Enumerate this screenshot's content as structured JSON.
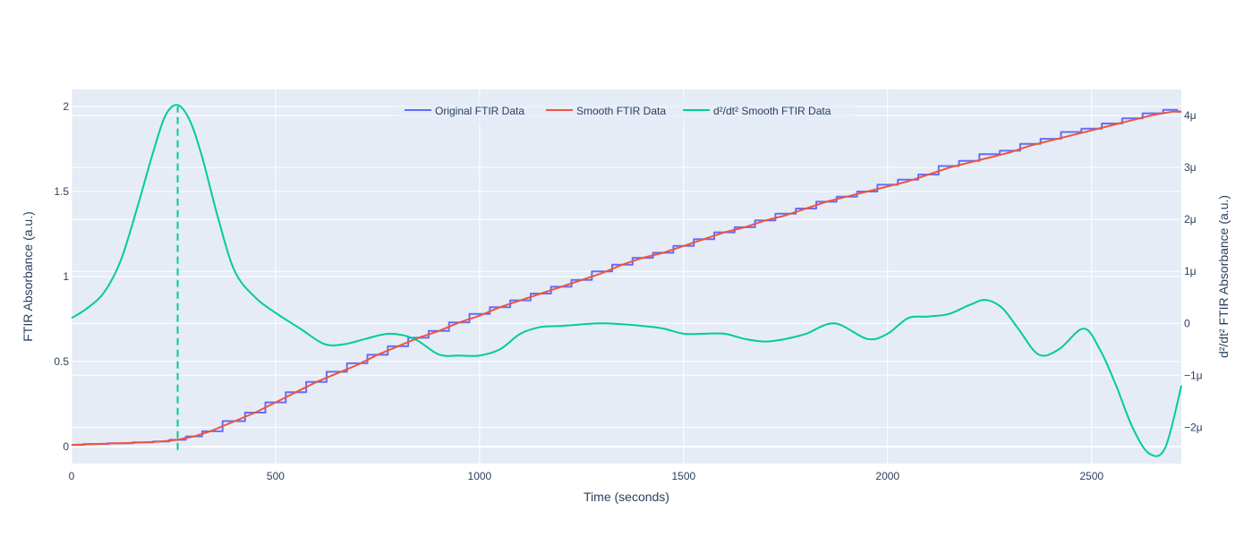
{
  "chart_data": {
    "type": "line",
    "xlabel": "Time (seconds)",
    "ylabel": "FTIR Absorbance (a.u.)",
    "y2label": "d²/dt² FTIR Absorbance (a.u.)",
    "xlim": [
      0,
      2720
    ],
    "ylim": [
      -0.1,
      2.1
    ],
    "y2lim": [
      -2.7e-06,
      4.5e-06
    ],
    "x_ticks": [
      {
        "value": 0,
        "label": "0"
      },
      {
        "value": 500,
        "label": "500"
      },
      {
        "value": 1000,
        "label": "1000"
      },
      {
        "value": 1500,
        "label": "1500"
      },
      {
        "value": 2000,
        "label": "2000"
      },
      {
        "value": 2500,
        "label": "2500"
      }
    ],
    "y_ticks": [
      {
        "value": 0,
        "label": "0"
      },
      {
        "value": 0.5,
        "label": "0.5"
      },
      {
        "value": 1,
        "label": "1"
      },
      {
        "value": 1.5,
        "label": "1.5"
      },
      {
        "value": 2,
        "label": "2"
      }
    ],
    "y2_ticks": [
      {
        "value": -2e-06,
        "label": "−2μ"
      },
      {
        "value": -1e-06,
        "label": "−1μ"
      },
      {
        "value": 0,
        "label": "0"
      },
      {
        "value": 1e-06,
        "label": "1μ"
      },
      {
        "value": 2e-06,
        "label": "2μ"
      },
      {
        "value": 3e-06,
        "label": "3μ"
      },
      {
        "value": 4e-06,
        "label": "4μ"
      }
    ],
    "grid": true,
    "legend_position": "top-center",
    "vline": {
      "x": 260,
      "y_from": -0.02,
      "y_to": 2.0,
      "color": "#00cc96",
      "style": "dashed"
    },
    "series": [
      {
        "name": "Original FTIR Data",
        "color": "#636efa",
        "axis": "y",
        "shape": "step",
        "x": [
          0,
          60,
          120,
          180,
          220,
          260,
          300,
          340,
          400,
          450,
          500,
          550,
          600,
          650,
          700,
          750,
          800,
          850,
          900,
          950,
          1000,
          1050,
          1100,
          1150,
          1200,
          1250,
          1300,
          1350,
          1400,
          1450,
          1500,
          1550,
          1600,
          1650,
          1700,
          1750,
          1800,
          1850,
          1900,
          1950,
          2000,
          2050,
          2100,
          2150,
          2200,
          2250,
          2300,
          2350,
          2400,
          2450,
          2500,
          2550,
          2600,
          2650,
          2700,
          2720
        ],
        "y": [
          0.01,
          0.015,
          0.02,
          0.025,
          0.03,
          0.04,
          0.06,
          0.09,
          0.15,
          0.2,
          0.26,
          0.32,
          0.38,
          0.44,
          0.49,
          0.54,
          0.59,
          0.64,
          0.68,
          0.73,
          0.78,
          0.82,
          0.86,
          0.9,
          0.94,
          0.98,
          1.03,
          1.07,
          1.11,
          1.14,
          1.18,
          1.22,
          1.26,
          1.29,
          1.33,
          1.37,
          1.4,
          1.44,
          1.47,
          1.5,
          1.54,
          1.57,
          1.6,
          1.65,
          1.68,
          1.72,
          1.74,
          1.78,
          1.81,
          1.85,
          1.87,
          1.9,
          1.93,
          1.96,
          1.98,
          1.97
        ]
      },
      {
        "name": "Smooth FTIR Data",
        "color": "#ef553b",
        "axis": "y",
        "shape": "linear",
        "x": [
          0,
          60,
          120,
          180,
          220,
          260,
          300,
          340,
          400,
          450,
          500,
          550,
          600,
          650,
          700,
          750,
          800,
          850,
          900,
          950,
          1000,
          1050,
          1100,
          1150,
          1200,
          1250,
          1300,
          1350,
          1400,
          1450,
          1500,
          1550,
          1600,
          1650,
          1700,
          1750,
          1800,
          1850,
          1900,
          1950,
          2000,
          2050,
          2100,
          2150,
          2200,
          2250,
          2300,
          2350,
          2400,
          2450,
          2500,
          2550,
          2600,
          2650,
          2700,
          2720
        ],
        "y": [
          0.01,
          0.015,
          0.02,
          0.025,
          0.03,
          0.04,
          0.06,
          0.09,
          0.15,
          0.2,
          0.26,
          0.32,
          0.38,
          0.43,
          0.48,
          0.54,
          0.59,
          0.64,
          0.68,
          0.73,
          0.77,
          0.82,
          0.86,
          0.9,
          0.94,
          0.98,
          1.02,
          1.07,
          1.11,
          1.14,
          1.18,
          1.22,
          1.26,
          1.29,
          1.33,
          1.36,
          1.4,
          1.44,
          1.47,
          1.5,
          1.53,
          1.56,
          1.6,
          1.64,
          1.67,
          1.7,
          1.73,
          1.77,
          1.8,
          1.83,
          1.86,
          1.89,
          1.92,
          1.95,
          1.97,
          1.97
        ]
      },
      {
        "name": "d²/dt² Smooth FTIR Data",
        "color": "#00cc96",
        "axis": "y2",
        "shape": "spline",
        "x": [
          0,
          40,
          80,
          120,
          160,
          200,
          230,
          260,
          290,
          320,
          360,
          400,
          450,
          500,
          560,
          620,
          670,
          720,
          780,
          840,
          900,
          950,
          1000,
          1050,
          1100,
          1150,
          1200,
          1300,
          1400,
          1450,
          1500,
          1550,
          1600,
          1650,
          1700,
          1750,
          1800,
          1870,
          1950,
          2000,
          2050,
          2100,
          2150,
          2200,
          2240,
          2280,
          2320,
          2370,
          2420,
          2480,
          2520,
          2560,
          2600,
          2640,
          2680,
          2720
        ],
        "y": [
          1e-07,
          3e-07,
          6e-07,
          1.2e-06,
          2.2e-06,
          3.3e-06,
          4e-06,
          4.2e-06,
          3.9e-06,
          3.2e-06,
          2e-06,
          1e-06,
          5e-07,
          2e-07,
          -1e-07,
          -4e-07,
          -4e-07,
          -3e-07,
          -2e-07,
          -3e-07,
          -6e-07,
          -6.2e-07,
          -6.2e-07,
          -5e-07,
          -2e-07,
          -7e-08,
          -5e-08,
          0.0,
          -5e-08,
          -1e-07,
          -2e-07,
          -2e-07,
          -2e-07,
          -3e-07,
          -3.5e-07,
          -3e-07,
          -2e-07,
          0.0,
          -3e-07,
          -2e-07,
          1e-07,
          1.3e-07,
          1.8e-07,
          3.5e-07,
          4.5e-07,
          3e-07,
          -1e-07,
          -6e-07,
          -5e-07,
          -1e-07,
          -5e-07,
          -1.2e-06,
          -2e-06,
          -2.5e-06,
          -2.4e-06,
          -1.2e-06
        ]
      }
    ]
  }
}
